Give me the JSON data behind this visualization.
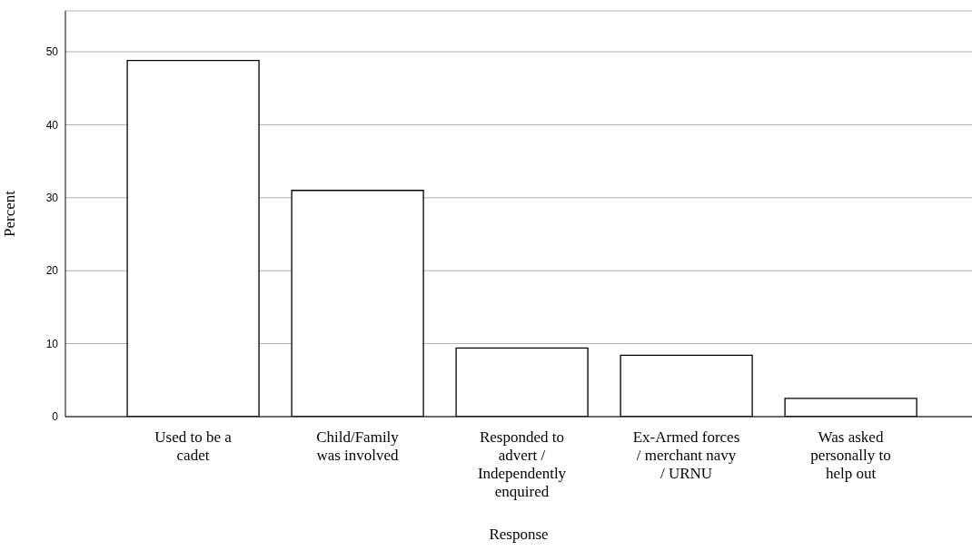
{
  "chart_data": {
    "type": "bar",
    "xlabel": "Response",
    "ylabel": "Percent",
    "categories": [
      "Used to be a cadet",
      "Child/Family was involved",
      "Responded to advert / Independently enquired",
      "Ex-Armed forces / merchant navy / URNU",
      "Was asked personally to help out"
    ],
    "values": [
      48.8,
      31.0,
      9.4,
      8.4,
      2.5
    ],
    "color": "#ffffff",
    "ylim": [
      0,
      55.6
    ],
    "yticks": [
      0,
      10,
      20,
      30,
      40,
      50
    ],
    "grid": "y"
  }
}
